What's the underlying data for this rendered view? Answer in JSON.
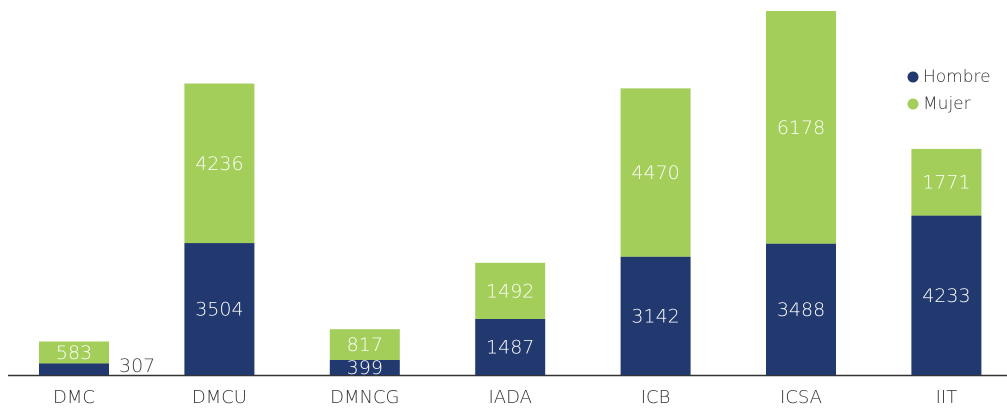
{
  "chart_data": {
    "type": "stacked_bar",
    "categories": [
      "DMC",
      "DMCU",
      "DMNCG",
      "IADA",
      "ICB",
      "ICSA",
      "IIT"
    ],
    "series": [
      {
        "name": "Hombre",
        "color": "#22396f",
        "values": [
          307,
          3504,
          399,
          1487,
          3142,
          3488,
          4233
        ]
      },
      {
        "name": "Mujer",
        "color": "#a3ce5a",
        "values": [
          583,
          4236,
          817,
          1492,
          4470,
          6178,
          1771
        ]
      }
    ],
    "legend": "upper right"
  }
}
